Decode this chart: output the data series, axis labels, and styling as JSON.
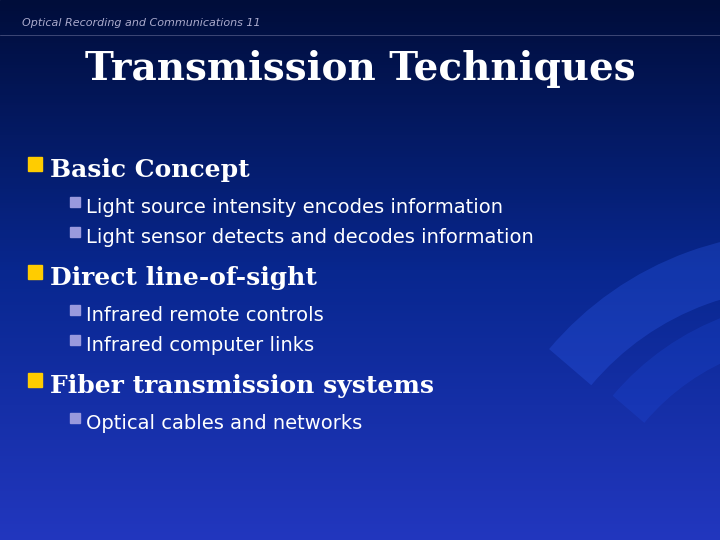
{
  "slide_title": "Transmission Techniques",
  "header_text": "Optical Recording and Communications 11",
  "bg_color_top": "#000d3a",
  "bg_color_mid": "#0a2280",
  "bg_color_bot": "#1535c0",
  "title_color": "#ffffff",
  "header_color": "#aaaacc",
  "bullet1_text": "Basic Concept",
  "bullet1_marker_color": "#ffcc00",
  "sub1a": "Light source intensity encodes information",
  "sub1b": "Light sensor detects and decodes information",
  "bullet2_text": "Direct line-of-sight",
  "bullet2_marker_color": "#ffcc00",
  "sub2a": "Infrared remote controls",
  "sub2b": "Infrared computer links",
  "bullet3_text": "Fiber transmission systems",
  "bullet3_marker_color": "#ffcc00",
  "sub3a": "Optical cables and networks",
  "text_color": "#ffffff",
  "sub_marker_color": "#9999dd",
  "title_fontsize": 28,
  "header_fontsize": 8,
  "bullet_fontsize": 18,
  "sub_fontsize": 14
}
